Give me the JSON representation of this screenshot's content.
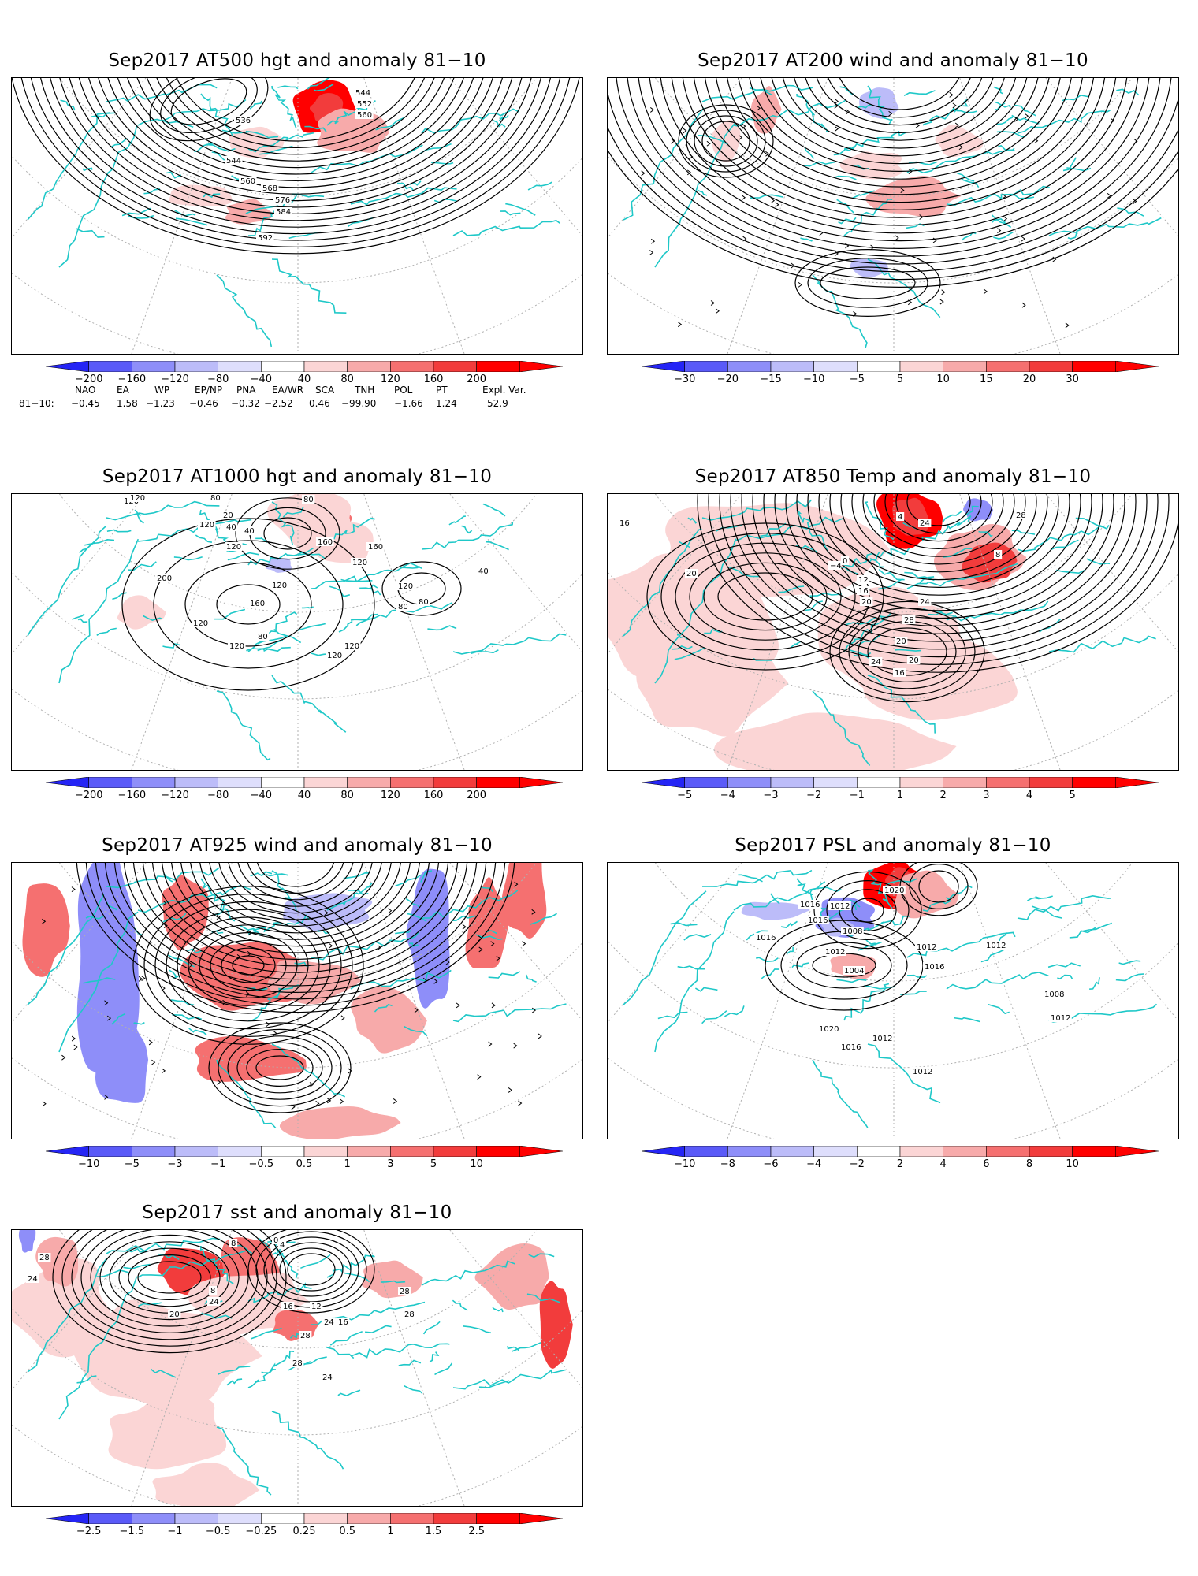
{
  "panels": [
    {
      "id": "p1",
      "title": "Sep2017  AT500 hgt and anomaly 81−10",
      "scale": [
        "−200",
        "−160",
        "−120",
        "−80",
        "−40",
        "40",
        "80",
        "120",
        "160",
        "200"
      ],
      "contour_labels": [
        "544",
        "552",
        "560",
        "536",
        "544",
        "560",
        "568",
        "576",
        "584",
        "592"
      ]
    },
    {
      "id": "p2",
      "title": "Sep2017  AT200 wind and anomaly 81−10",
      "scale": [
        "−30",
        "−20",
        "−15",
        "−10",
        "−5",
        "5",
        "10",
        "15",
        "20",
        "30"
      ],
      "contour_labels": []
    },
    {
      "id": "p3",
      "title": "Sep2017  AT1000 hgt and anomaly 81−10",
      "scale": [
        "−200",
        "−160",
        "−120",
        "−80",
        "−40",
        "40",
        "80",
        "120",
        "160",
        "200"
      ],
      "contour_labels": [
        "120",
        "120",
        "80",
        "120",
        "20",
        "40",
        "120",
        "40",
        "80",
        "160",
        "120",
        "160",
        "200",
        "160",
        "40",
        "120",
        "120",
        "120",
        "80",
        "80",
        "80",
        "120",
        "120",
        "120"
      ]
    },
    {
      "id": "p4",
      "title": "Sep2017  AT850 Temp and anomaly 81−10",
      "scale": [
        "−5",
        "−4",
        "−3",
        "−2",
        "−1",
        "1",
        "2",
        "3",
        "4",
        "5"
      ],
      "contour_labels": [
        "16",
        "20",
        "−4",
        "0",
        "4",
        "24",
        "28",
        "8",
        "12",
        "16",
        "20",
        "24",
        "28",
        "20",
        "24",
        "20",
        "16"
      ]
    },
    {
      "id": "p5",
      "title": "Sep2017  AT925 wind and anomaly 81−10",
      "scale": [
        "−10",
        "−5",
        "−3",
        "−1",
        "−0.5",
        "0.5",
        "1",
        "3",
        "5",
        "10"
      ],
      "contour_labels": []
    },
    {
      "id": "p6",
      "title": "Sep2017  PSL and anomaly 81−10",
      "scale": [
        "−10",
        "−8",
        "−6",
        "−4",
        "−2",
        "2",
        "4",
        "6",
        "8",
        "10"
      ],
      "contour_labels": [
        "1020",
        "1012",
        "1016",
        "1016",
        "1008",
        "1016",
        "1004",
        "1012",
        "1016",
        "1012",
        "1012",
        "1008",
        "1012",
        "1020",
        "1012",
        "1016",
        "1012"
      ]
    },
    {
      "id": "p7",
      "title": "Sep2017  sst and anomaly 81−10",
      "scale": [
        "−2.5",
        "−1.5",
        "−1",
        "−0.5",
        "−0.25",
        "0.25",
        "0.5",
        "1",
        "1.5",
        "2.5"
      ],
      "contour_labels": [
        "24",
        "28",
        "8",
        "0",
        "4",
        "8",
        "24",
        "12",
        "16",
        "20",
        "16",
        "24",
        "24",
        "28",
        "28",
        "28",
        "28"
      ]
    }
  ],
  "teleconnections": {
    "headers": [
      "NAO",
      "EA",
      "WP",
      "EP/NP",
      "PNA",
      "EA/WR",
      "SCA",
      "TNH",
      "POL",
      "PT",
      "Expl. Var."
    ],
    "row_label": "81−10:",
    "values": [
      "−0.45",
      "1.58",
      "−1.23",
      "−0.46",
      "−0.32",
      "−2.52",
      "0.46",
      "−99.90",
      "−1.66",
      "1.24",
      "52.9"
    ]
  },
  "colors": {
    "coast": "#1fc8c8",
    "contour": "#000000",
    "grid": "#b0b0b0",
    "scale": [
      "#2525f5",
      "#5a5af8",
      "#8e8ef9",
      "#bcbcf9",
      "#dedefc",
      "#ffffff",
      "#fbd5d5",
      "#f7aaaa",
      "#f57070",
      "#f23c3c",
      "#ff0000"
    ]
  }
}
